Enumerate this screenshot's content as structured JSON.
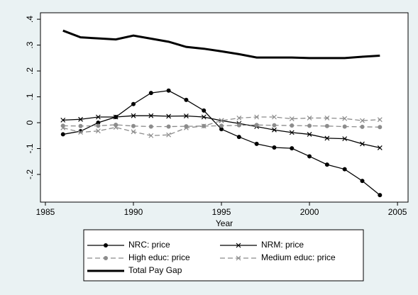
{
  "chart_data": {
    "type": "line",
    "x_label": "Year",
    "x": [
      1986,
      1987,
      1988,
      1989,
      1990,
      1991,
      1992,
      1993,
      1994,
      1995,
      1996,
      1997,
      1998,
      1999,
      2000,
      2001,
      2002,
      2003,
      2004
    ],
    "series": [
      {
        "name": "NRC: price",
        "color": "#000000",
        "marker": "circle",
        "dash": false,
        "width": 1.3,
        "values": [
          -0.045,
          -0.033,
          0.0,
          0.022,
          0.072,
          0.115,
          0.124,
          0.088,
          0.047,
          -0.025,
          -0.055,
          -0.082,
          -0.096,
          -0.099,
          -0.13,
          -0.162,
          -0.18,
          -0.225,
          -0.28
        ]
      },
      {
        "name": "NRM: price",
        "color": "#000000",
        "marker": "x",
        "dash": false,
        "width": 1.3,
        "values": [
          0.01,
          0.013,
          0.022,
          0.022,
          0.027,
          0.027,
          0.025,
          0.026,
          0.022,
          0.008,
          -0.003,
          -0.015,
          -0.028,
          -0.038,
          -0.045,
          -0.06,
          -0.062,
          -0.082,
          -0.097
        ]
      },
      {
        "name": "High educ: price",
        "color": "#8c8c8c",
        "marker": "circle",
        "dash": true,
        "width": 1.3,
        "values": [
          -0.012,
          -0.013,
          -0.012,
          -0.008,
          -0.013,
          -0.015,
          -0.015,
          -0.014,
          -0.013,
          -0.012,
          -0.01,
          -0.009,
          -0.01,
          -0.011,
          -0.012,
          -0.013,
          -0.015,
          -0.016,
          -0.017
        ]
      },
      {
        "name": "Medium educ: price",
        "color": "#8c8c8c",
        "marker": "x",
        "dash": true,
        "width": 1.3,
        "values": [
          -0.02,
          -0.037,
          -0.032,
          -0.018,
          -0.035,
          -0.05,
          -0.047,
          -0.02,
          -0.013,
          0.008,
          0.018,
          0.022,
          0.022,
          0.015,
          0.018,
          0.018,
          0.016,
          0.008,
          0.012
        ]
      },
      {
        "name": "Total Pay Gap",
        "color": "#000000",
        "marker": null,
        "dash": false,
        "width": 3,
        "values": [
          0.356,
          0.33,
          0.326,
          0.322,
          0.337,
          0.325,
          0.313,
          0.293,
          0.286,
          0.276,
          0.265,
          0.252,
          0.252,
          0.252,
          0.25,
          0.25,
          0.25,
          0.255,
          0.259
        ]
      }
    ],
    "xlim": [
      1984.72,
      2005.6
    ],
    "xticks": [
      1985,
      1990,
      1995,
      2000,
      2005
    ],
    "ylim": [
      -0.307,
      0.425
    ],
    "yticks": [
      {
        "value": 0.4,
        "label": ".4"
      },
      {
        "value": 0.3,
        "label": ".3"
      },
      {
        "value": 0.2,
        "label": ".2"
      },
      {
        "value": 0.1,
        "label": ".1"
      },
      0,
      {
        "value": -0.1,
        "label": "-.1"
      },
      {
        "value": -0.2,
        "label": "-.2"
      }
    ],
    "grid": false,
    "legend": "bottom"
  }
}
